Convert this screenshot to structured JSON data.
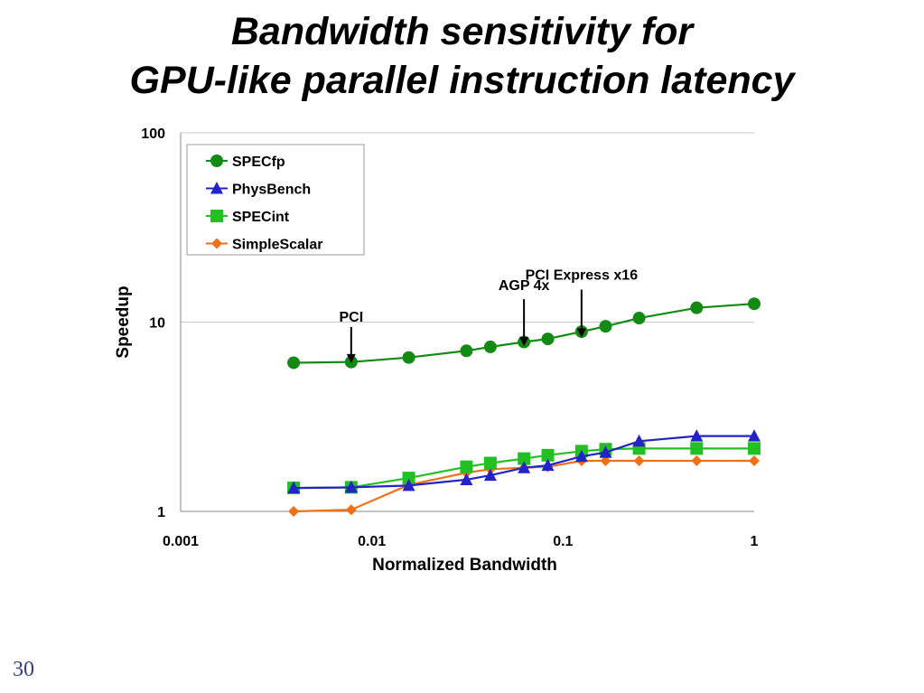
{
  "slide": {
    "title_line1": "Bandwidth sensitivity for",
    "title_line2": "GPU-like parallel instruction latency",
    "slide_number": "30"
  },
  "chart_data": {
    "type": "line",
    "xlabel": "Normalized Bandwidth",
    "ylabel": "Speedup",
    "xscale": "log",
    "yscale": "log",
    "xlim": [
      0.001,
      1
    ],
    "ylim": [
      1,
      100
    ],
    "x_ticks": [
      "0.001",
      "0.01",
      "0.1",
      "1"
    ],
    "y_ticks": [
      "1",
      "10",
      "100"
    ],
    "grid": "horizontal",
    "legend_position": "top-left",
    "series": [
      {
        "name": "SPECfp",
        "color": "#138a13",
        "marker": "circle",
        "x": [
          0.0039,
          0.0078,
          0.0156,
          0.03125,
          0.0417,
          0.0625,
          0.0833,
          0.125,
          0.167,
          0.25,
          0.5,
          1
        ],
        "y": [
          6.1,
          6.15,
          6.5,
          7.05,
          7.4,
          7.85,
          8.15,
          8.9,
          9.5,
          10.5,
          11.9,
          12.5
        ]
      },
      {
        "name": "PhysBench",
        "color": "#2323c8",
        "marker": "triangle",
        "x": [
          0.0039,
          0.0078,
          0.0156,
          0.03125,
          0.0417,
          0.0625,
          0.0833,
          0.125,
          0.167,
          0.25,
          0.5,
          1
        ],
        "y": [
          1.33,
          1.34,
          1.37,
          1.47,
          1.55,
          1.7,
          1.75,
          1.95,
          2.05,
          2.35,
          2.5,
          2.5
        ]
      },
      {
        "name": "SPECint",
        "color": "#22c022",
        "marker": "square",
        "x": [
          0.0039,
          0.0078,
          0.0156,
          0.03125,
          0.0417,
          0.0625,
          0.0833,
          0.125,
          0.167,
          0.25,
          0.5,
          1
        ],
        "y": [
          1.33,
          1.34,
          1.5,
          1.72,
          1.8,
          1.9,
          1.98,
          2.08,
          2.13,
          2.15,
          2.15,
          2.15
        ]
      },
      {
        "name": "SimpleScalar",
        "color": "#f07018",
        "marker": "diamond",
        "x": [
          0.0039,
          0.0078,
          0.0156,
          0.03125,
          0.0417,
          0.0625,
          0.0833,
          0.125,
          0.167,
          0.25,
          0.5,
          1
        ],
        "y": [
          1.0,
          1.02,
          1.38,
          1.6,
          1.67,
          1.7,
          1.72,
          1.85,
          1.85,
          1.85,
          1.85,
          1.85
        ]
      }
    ],
    "annotations": [
      {
        "text": "PCI",
        "x": 0.0078,
        "y": 7.4
      },
      {
        "text": "AGP 4x",
        "x": 0.0625,
        "y": 9.5
      },
      {
        "text": "PCI Express x16",
        "x": 0.125,
        "y": 10.8
      }
    ]
  }
}
